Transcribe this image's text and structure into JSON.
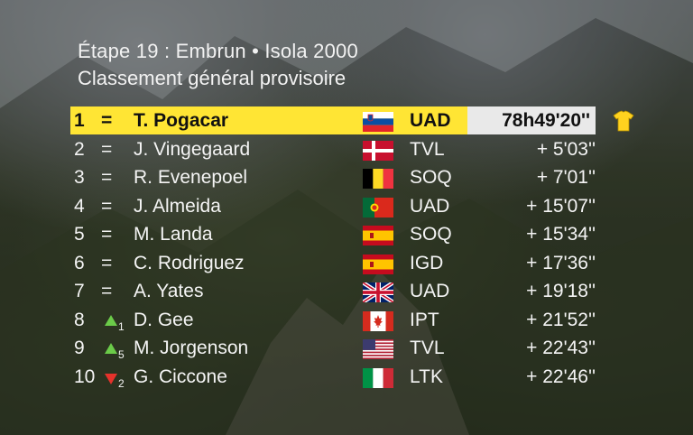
{
  "header": {
    "stage": "Étape 19 : Embrun • Isola 2000",
    "subtitle": "Classement général provisoire"
  },
  "colors": {
    "leader_bar": "#ffe534",
    "time_box": "#e9e9e9",
    "up": "#6bcb49",
    "down": "#e5322b"
  },
  "standings": [
    {
      "pos": "1",
      "change": "=",
      "change_num": "",
      "name": "T. Pogacar",
      "flag": "slovenia-flag",
      "team": "UAD",
      "time": "78h49'20''"
    },
    {
      "pos": "2",
      "change": "=",
      "change_num": "",
      "name": "J. Vingegaard",
      "flag": "denmark-flag",
      "team": "TVL",
      "time": "+ 5'03''"
    },
    {
      "pos": "3",
      "change": "=",
      "change_num": "",
      "name": "R. Evenepoel",
      "flag": "belgium-flag",
      "team": "SOQ",
      "time": "+ 7'01''"
    },
    {
      "pos": "4",
      "change": "=",
      "change_num": "",
      "name": "J. Almeida",
      "flag": "portugal-flag",
      "team": "UAD",
      "time": "+ 15'07''"
    },
    {
      "pos": "5",
      "change": "=",
      "change_num": "",
      "name": "M. Landa",
      "flag": "spain-flag",
      "team": "SOQ",
      "time": "+ 15'34''"
    },
    {
      "pos": "6",
      "change": "=",
      "change_num": "",
      "name": "C. Rodriguez",
      "flag": "spain-flag",
      "team": "IGD",
      "time": "+ 17'36''"
    },
    {
      "pos": "7",
      "change": "=",
      "change_num": "",
      "name": "A. Yates",
      "flag": "uk-flag",
      "team": "UAD",
      "time": "+ 19'18''"
    },
    {
      "pos": "8",
      "change": "up",
      "change_num": "1",
      "name": "D. Gee",
      "flag": "canada-flag",
      "team": "IPT",
      "time": "+ 21'52''"
    },
    {
      "pos": "9",
      "change": "up",
      "change_num": "5",
      "name": "M. Jorgenson",
      "flag": "usa-flag",
      "team": "TVL",
      "time": "+ 22'43''"
    },
    {
      "pos": "10",
      "change": "down",
      "change_num": "2",
      "name": "G. Ciccone",
      "flag": "italy-flag",
      "team": "LTK",
      "time": "+ 22'46''"
    }
  ]
}
